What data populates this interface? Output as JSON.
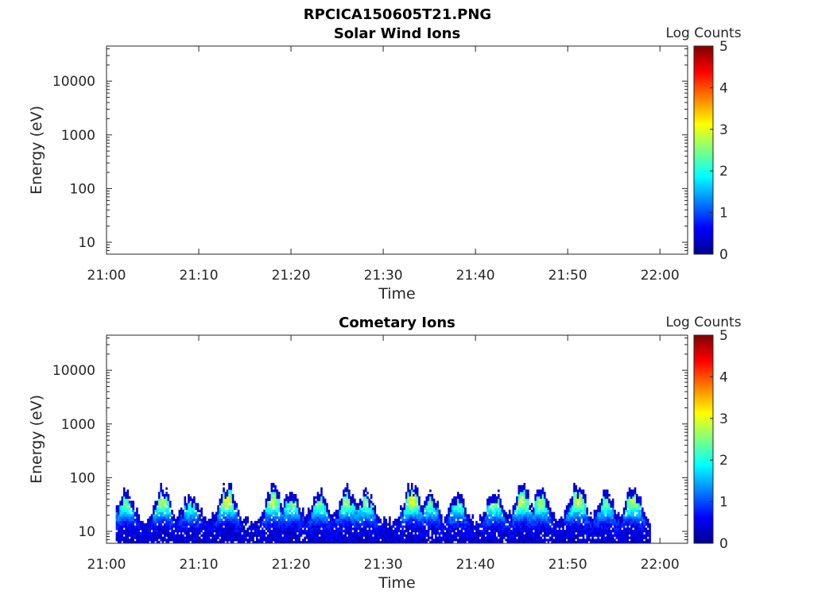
{
  "figure": {
    "title": "RPCICA150605T21.PNG"
  },
  "chart_data": [
    {
      "type": "heatmap",
      "title": "Solar Wind Ions",
      "xlabel": "Time",
      "ylabel": "Energy (eV)",
      "x_ticks": [
        "21:00",
        "21:10",
        "21:20",
        "21:30",
        "21:40",
        "21:50",
        "22:00"
      ],
      "x_range": [
        "21:00",
        "22:03"
      ],
      "y_scale": "log",
      "y_ticks": [
        10,
        100,
        1000,
        10000
      ],
      "y_tick_labels": [
        "10",
        "100",
        "1000",
        "10000"
      ],
      "y_range": [
        6,
        45000
      ],
      "colorbar": {
        "label": "Log Counts",
        "range": [
          0,
          5
        ],
        "ticks": [
          "0",
          "1",
          "2",
          "3",
          "4",
          "5"
        ],
        "colormap": "jet"
      },
      "data_present": false,
      "bursts": []
    },
    {
      "type": "heatmap",
      "title": "Cometary Ions",
      "xlabel": "Time",
      "ylabel": "Energy (eV)",
      "x_ticks": [
        "21:00",
        "21:10",
        "21:20",
        "21:30",
        "21:40",
        "21:50",
        "22:00"
      ],
      "x_range": [
        "21:00",
        "22:03"
      ],
      "y_scale": "log",
      "y_ticks": [
        10,
        100,
        1000,
        10000
      ],
      "y_tick_labels": [
        "10",
        "100",
        "1000",
        "10000"
      ],
      "y_range": [
        6,
        45000
      ],
      "colorbar": {
        "label": "Log Counts",
        "range": [
          0,
          5
        ],
        "ticks": [
          "0",
          "1",
          "2",
          "3",
          "4",
          "5"
        ],
        "colormap": "jet"
      },
      "data_present": true,
      "data_time_range": [
        "21:01",
        "21:59"
      ],
      "data_energy_range_eV": [
        6,
        80
      ],
      "bursts": [
        {
          "t": "21:02",
          "peak_log_counts": 2.0
        },
        {
          "t": "21:06",
          "peak_log_counts": 2.3
        },
        {
          "t": "21:09",
          "peak_log_counts": 1.8
        },
        {
          "t": "21:13",
          "peak_log_counts": 2.6
        },
        {
          "t": "21:18",
          "peak_log_counts": 2.4
        },
        {
          "t": "21:20",
          "peak_log_counts": 2.1
        },
        {
          "t": "21:23",
          "peak_log_counts": 2.0
        },
        {
          "t": "21:26",
          "peak_log_counts": 2.2
        },
        {
          "t": "21:28",
          "peak_log_counts": 2.0
        },
        {
          "t": "21:33",
          "peak_log_counts": 2.6
        },
        {
          "t": "21:35",
          "peak_log_counts": 2.0
        },
        {
          "t": "21:38",
          "peak_log_counts": 1.8
        },
        {
          "t": "21:42",
          "peak_log_counts": 2.1
        },
        {
          "t": "21:45",
          "peak_log_counts": 2.4
        },
        {
          "t": "21:47",
          "peak_log_counts": 2.2
        },
        {
          "t": "21:51",
          "peak_log_counts": 2.5
        },
        {
          "t": "21:54",
          "peak_log_counts": 2.0
        },
        {
          "t": "21:57",
          "peak_log_counts": 2.3
        }
      ]
    }
  ]
}
